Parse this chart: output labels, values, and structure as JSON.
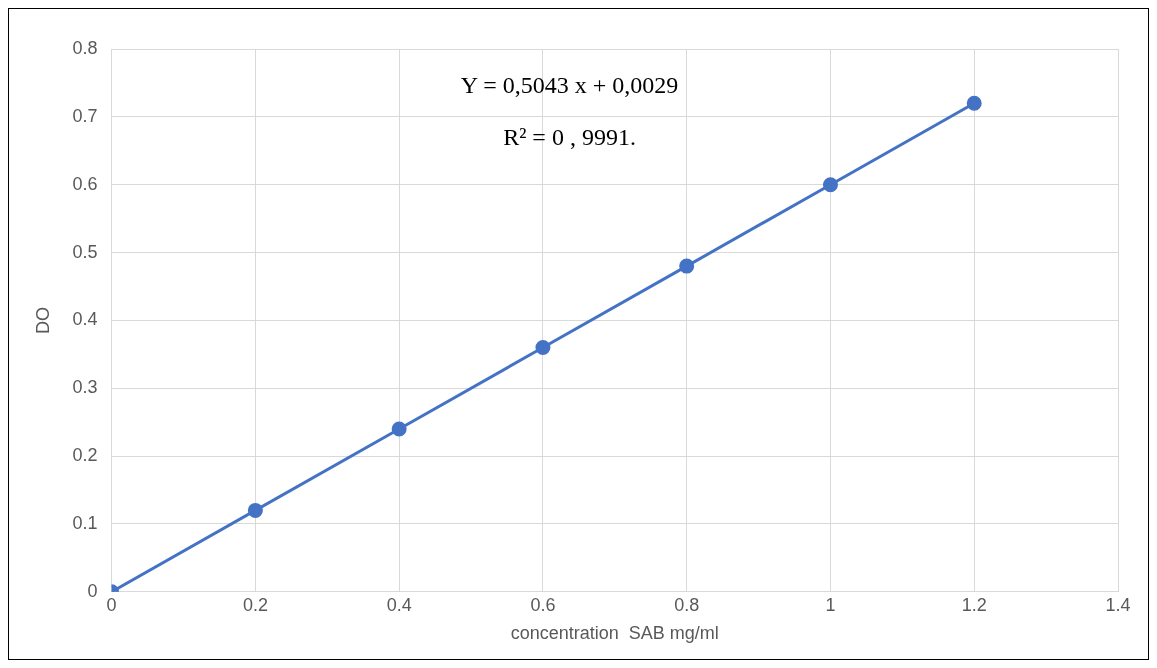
{
  "chart_data": {
    "type": "line",
    "xlabel": "concentration  SAB mg/ml",
    "ylabel": "DO",
    "x": [
      0,
      0.2,
      0.4,
      0.6,
      0.8,
      1,
      1.2
    ],
    "series": [
      {
        "color": "#4472c4",
        "values": [
          0,
          0.12,
          0.24,
          0.36,
          0.48,
          0.6,
          0.72
        ]
      }
    ],
    "xlim": [
      0,
      1.4
    ],
    "xticks": [
      0,
      0.2,
      0.4,
      0.6,
      0.8,
      1,
      1.2,
      1.4
    ],
    "ylim": [
      0,
      0.8
    ],
    "yticks": [
      0,
      0.1,
      0.2,
      0.3,
      0.4,
      0.5,
      0.6,
      0.7,
      0.8
    ],
    "grid": true,
    "marker": "circle",
    "line_style": "solid",
    "annotations": [
      "Y = 0,5043 x + 0,0029",
      "R² = 0 , 9991."
    ]
  }
}
